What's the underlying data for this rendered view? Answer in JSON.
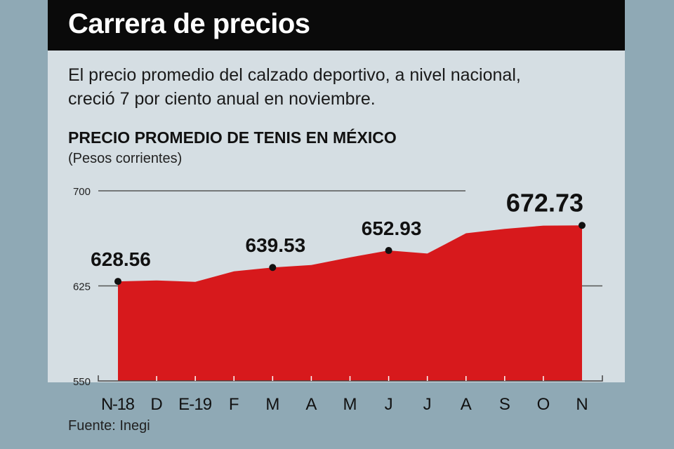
{
  "header": {
    "title": "Carrera de precios"
  },
  "subtitle": {
    "line1": "El precio promedio del calzado deportivo, a nivel nacional,",
    "line2": "creció 7 por ciento anual en noviembre."
  },
  "footer": {
    "source": "Fuente: Inegi"
  },
  "colors": {
    "area": "#d7191c",
    "header_bg": "#0a0a0a",
    "panel_bg": "#d5dee3",
    "outer_bg": "#8fa9b5"
  },
  "chart_data": {
    "type": "area",
    "title": "PRECIO PROMEDIO DE TENIS EN MÉXICO",
    "subtitle": "(Pesos corrientes)",
    "xlabel": "",
    "ylabel": "",
    "ylim": [
      550,
      700
    ],
    "yticks": [
      550,
      625,
      700
    ],
    "categories": [
      "N-18",
      "D",
      "E-19",
      "F",
      "M",
      "A",
      "M",
      "J",
      "J",
      "A",
      "S",
      "O",
      "N"
    ],
    "values": [
      628.56,
      629.3,
      628.2,
      636.5,
      639.53,
      641.5,
      647.5,
      652.93,
      650.5,
      666.5,
      670.0,
      672.5,
      672.73
    ],
    "annotations": [
      {
        "index": 0,
        "label": "628.56"
      },
      {
        "index": 4,
        "label": "639.53"
      },
      {
        "index": 7,
        "label": "652.93"
      },
      {
        "index": 12,
        "label": "672.73"
      }
    ],
    "grid": true,
    "legend": "none"
  }
}
